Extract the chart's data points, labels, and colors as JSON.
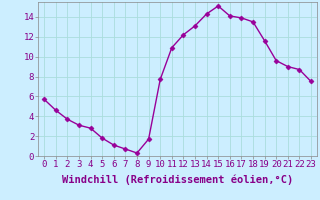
{
  "x": [
    0,
    1,
    2,
    3,
    4,
    5,
    6,
    7,
    8,
    9,
    10,
    11,
    12,
    13,
    14,
    15,
    16,
    17,
    18,
    19,
    20,
    21,
    22,
    23
  ],
  "y": [
    5.7,
    4.6,
    3.7,
    3.1,
    2.8,
    1.8,
    1.1,
    0.7,
    0.3,
    1.7,
    7.7,
    10.9,
    12.2,
    13.1,
    14.3,
    15.1,
    14.1,
    13.9,
    13.5,
    11.6,
    9.6,
    9.0,
    8.7,
    7.5
  ],
  "line_color": "#990099",
  "marker": "D",
  "marker_size": 2.5,
  "linewidth": 1.0,
  "xlabel": "Windchill (Refroidissement éolien,°C)",
  "xlim": [
    -0.5,
    23.5
  ],
  "ylim": [
    0,
    15.5
  ],
  "yticks": [
    0,
    2,
    4,
    6,
    8,
    10,
    12,
    14
  ],
  "xticks": [
    0,
    1,
    2,
    3,
    4,
    5,
    6,
    7,
    8,
    9,
    10,
    11,
    12,
    13,
    14,
    15,
    16,
    17,
    18,
    19,
    20,
    21,
    22,
    23
  ],
  "background_color": "#cceeff",
  "grid_color": "#aadddd",
  "tick_labelsize": 6.5,
  "xlabel_fontsize": 7.5,
  "text_color": "#880088"
}
